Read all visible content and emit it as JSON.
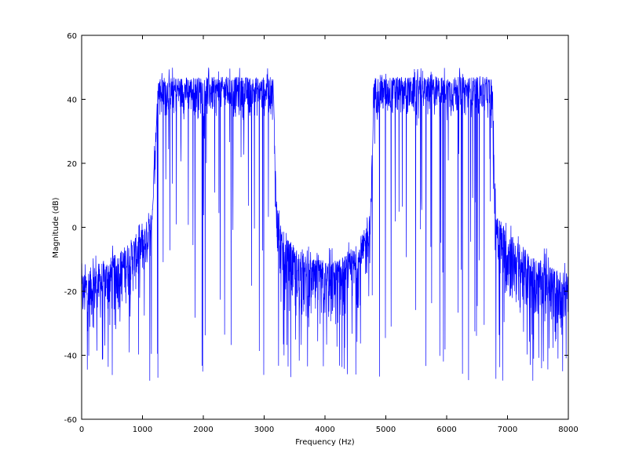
{
  "chart_data": {
    "type": "line",
    "title": "",
    "xlabel": "Frequency (Hz)",
    "ylabel": "Magnitude (dB)",
    "xlim": [
      0,
      8000
    ],
    "ylim": [
      -60,
      60
    ],
    "x_ticks": [
      0,
      1000,
      2000,
      3000,
      4000,
      5000,
      6000,
      7000,
      8000
    ],
    "y_ticks": [
      -60,
      -40,
      -20,
      0,
      20,
      40,
      60
    ],
    "x_tick_labels": [
      "0",
      "1000",
      "2000",
      "3000",
      "4000",
      "5000",
      "6000",
      "7000",
      "8000"
    ],
    "y_tick_labels": [
      "-60",
      "-40",
      "-20",
      "0",
      "20",
      "40",
      "60"
    ],
    "grid": false,
    "legend": "none",
    "series": [
      {
        "color": "#0000ff",
        "x": [
          0,
          100,
          200,
          300,
          400,
          500,
          600,
          700,
          800,
          900,
          1000,
          1100,
          1150,
          1200,
          1250,
          1500,
          2000,
          2500,
          3000,
          3150,
          3200,
          3250,
          3300,
          3400,
          3500,
          3600,
          3700,
          3800,
          3900,
          4000,
          4100,
          4200,
          4300,
          4400,
          4500,
          4600,
          4700,
          4750,
          4800,
          4850,
          5000,
          5500,
          6000,
          6500,
          6750,
          6800,
          6850,
          6900,
          7000,
          7100,
          7200,
          7300,
          7400,
          7500,
          7600,
          7700,
          7800,
          7900,
          8000
        ],
        "upper_envelope": [
          -10,
          -9,
          -8,
          -7,
          -6,
          -5,
          -4,
          -3,
          -2,
          0,
          2,
          5,
          8,
          14,
          50,
          50,
          50,
          50,
          50,
          50,
          14,
          5,
          0,
          -2,
          -4,
          -5,
          -6,
          -6,
          -6,
          -6,
          -6,
          -6,
          -5,
          -4,
          -2,
          0,
          5,
          8,
          50,
          50,
          50,
          50,
          50,
          50,
          50,
          14,
          8,
          5,
          2,
          0,
          -2,
          -3,
          -4,
          -5,
          -6,
          -7,
          -8,
          -9,
          -10
        ],
        "typical_upper": [
          -14,
          -13,
          -12,
          -11,
          -10,
          -9,
          -8,
          -6,
          -4,
          -2,
          0,
          3,
          6,
          10,
          47,
          47,
          47,
          47,
          47,
          47,
          10,
          3,
          -2,
          -4,
          -6,
          -8,
          -9,
          -10,
          -10,
          -10,
          -10,
          -10,
          -9,
          -8,
          -6,
          -3,
          2,
          5,
          47,
          47,
          47,
          47,
          47,
          47,
          47,
          10,
          5,
          2,
          -1,
          -3,
          -5,
          -7,
          -9,
          -10,
          -11,
          -12,
          -13,
          -14,
          -14
        ],
        "typical_lower": [
          -35,
          -34,
          -33,
          -32,
          -31,
          -30,
          -28,
          -26,
          -24,
          -22,
          -20,
          -15,
          -10,
          30,
          33,
          33,
          33,
          33,
          33,
          33,
          -10,
          -20,
          -25,
          -28,
          -30,
          -32,
          -33,
          -34,
          -34,
          -34,
          -34,
          -33,
          -32,
          -30,
          -28,
          -25,
          -18,
          -12,
          33,
          33,
          33,
          33,
          33,
          33,
          33,
          -12,
          -18,
          -22,
          -25,
          -27,
          -29,
          -30,
          -31,
          -32,
          -33,
          -34,
          -35,
          -35,
          -35
        ],
        "floor": -48
      }
    ]
  }
}
